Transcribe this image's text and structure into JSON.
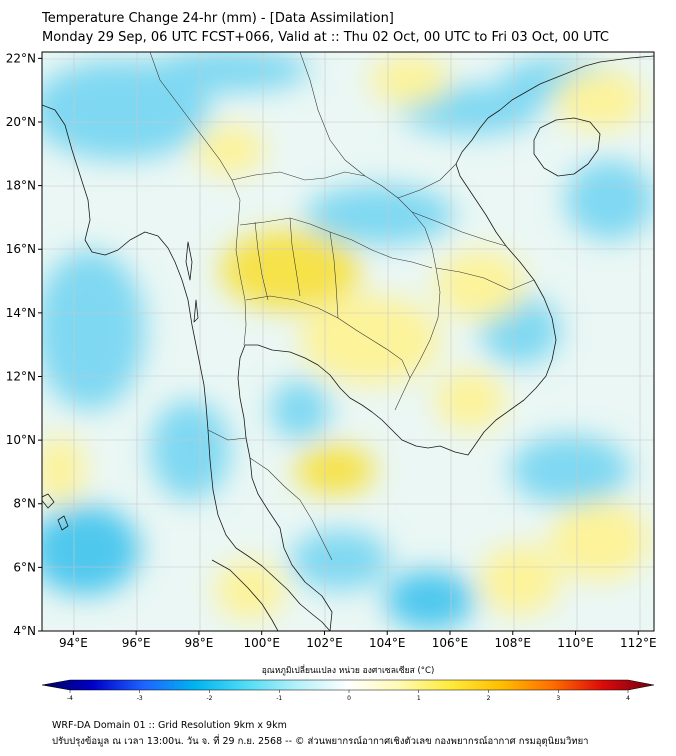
{
  "title_line1": "Temperature Change 24-hr (mm) - [Data Assimilation]",
  "title_line2": "Monday 29 Sep, 06 UTC FCST+066, Valid at :: Thu 02 Oct, 00 UTC to Fri 03 Oct, 00 UTC",
  "colorbar": {
    "label": "อุณหภูมิเปลี่ยนแปลง หน่วย องศาเซลเซียส (°C)",
    "min": -4,
    "max": 4,
    "ticks": [
      "-4",
      "-3",
      "-2",
      "-1",
      "0",
      "1",
      "2",
      "3",
      "4"
    ],
    "colors": [
      "#00005a",
      "#0000c8",
      "#1e64ff",
      "#00b4f0",
      "#50dcf5",
      "#b4f0f8",
      "#ffffff",
      "#fffab4",
      "#ffeb3c",
      "#ffbe00",
      "#ff6e00",
      "#dc0a0a",
      "#6e0014"
    ]
  },
  "map": {
    "lon_range": [
      93,
      112.5
    ],
    "lat_range": [
      4,
      22.2
    ],
    "lon_labels": [
      "94°E",
      "96°E",
      "98°E",
      "100°E",
      "102°E",
      "104°E",
      "106°E",
      "108°E",
      "110°E",
      "112°E"
    ],
    "lat_labels": [
      "22°N",
      "20°N",
      "18°N",
      "16°N",
      "14°N",
      "12°N",
      "10°N",
      "8°N",
      "6°N",
      "4°N"
    ],
    "field_colors": {
      "base": "#eaf7f4",
      "cool": "#7fd8f2",
      "cool_strong": "#4fc8ee",
      "warm": "#fdf39a",
      "warm_strong": "#f6e24a"
    },
    "coastline_color": "#1a1a1a",
    "border_color": "#333333"
  },
  "footer": {
    "line1": "WRF-DA Domain 01 :: Grid Resolution 9km x 9km",
    "line2": "ปรับปรุงข้อมูล ณ เวลา 13:00น. วัน จ. ที่ 29 ก.ย. 2568 -- © ส่วนพยากรณ์อากาศเชิงตัวเลข กองพยากรณ์อากาศ กรมอุตุนิยมวิทยา"
  }
}
